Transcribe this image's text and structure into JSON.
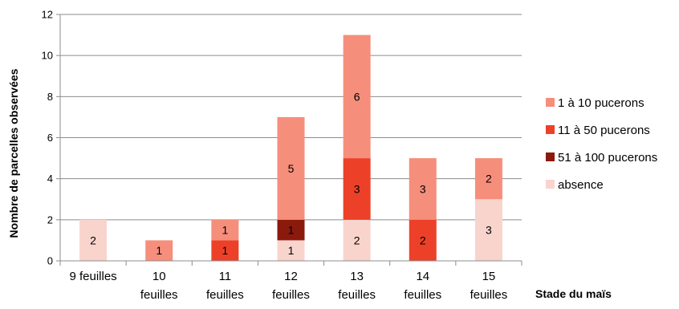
{
  "chart_data": {
    "type": "bar",
    "stacked": true,
    "categories": [
      [
        "9 feuilles"
      ],
      [
        "10",
        "feuilles"
      ],
      [
        "11",
        "feuilles"
      ],
      [
        "12",
        "feuilles"
      ],
      [
        "13",
        "feuilles"
      ],
      [
        "14",
        "feuilles"
      ],
      [
        "15",
        "feuilles"
      ]
    ],
    "series": [
      {
        "name": "absence",
        "color": "#f9d4cd",
        "values": [
          2,
          0,
          0,
          1,
          2,
          0,
          3
        ]
      },
      {
        "name": "51 à 100 pucerons",
        "color": "#8b1a0c",
        "values": [
          0,
          0,
          0,
          1,
          0,
          0,
          0
        ]
      },
      {
        "name": "11 à 50 pucerons",
        "color": "#ec4128",
        "values": [
          0,
          0,
          1,
          0,
          3,
          2,
          0
        ]
      },
      {
        "name": "1 à 10 pucerons",
        "color": "#f68e7c",
        "values": [
          0,
          1,
          1,
          5,
          6,
          3,
          2
        ]
      }
    ],
    "legend_order": [
      "1 à 10 pucerons",
      "11 à 50 pucerons",
      "51 à 100 pucerons",
      "absence"
    ],
    "legend_position": "right",
    "xlabel": "Stade du maïs",
    "ylabel": "Nombre de parcelles observées",
    "ylim": [
      0,
      12
    ],
    "yticks": [
      0,
      2,
      4,
      6,
      8,
      10,
      12
    ],
    "grid": true
  }
}
